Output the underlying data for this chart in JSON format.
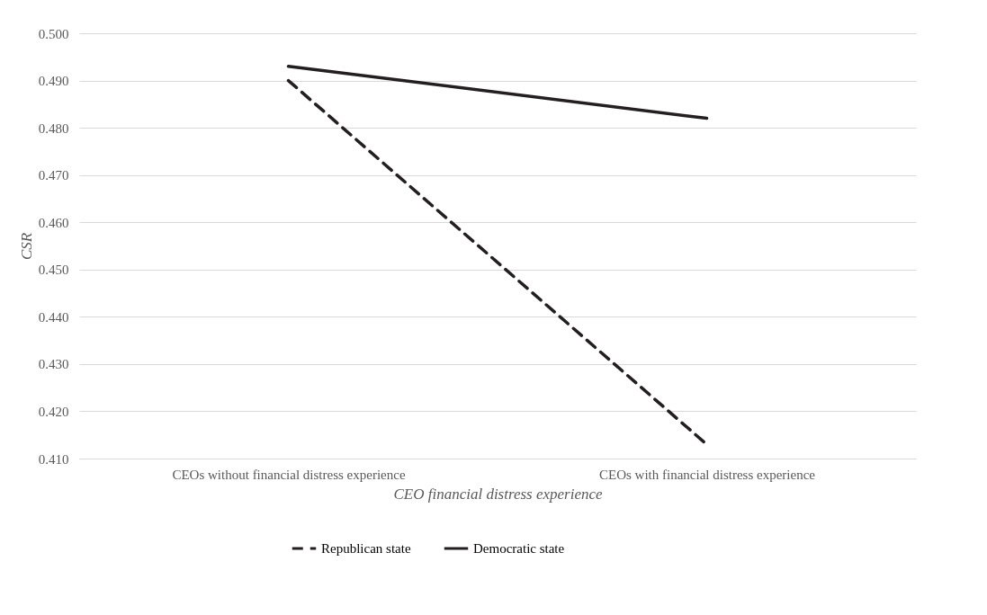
{
  "chart_data": {
    "type": "line",
    "xlabel": "CEO financial distress experience",
    "ylabel": "CSR",
    "categories": [
      "CEOs without financial distress experience",
      "CEOs with financial distress experience"
    ],
    "series": [
      {
        "name": "Republican state",
        "color": "#231f20",
        "values": [
          0.49,
          0.413
        ],
        "line_style": "dashed"
      },
      {
        "name": "Democratic state",
        "color": "#231f20",
        "values": [
          0.493,
          0.482
        ],
        "line_style": "solid"
      }
    ],
    "ylim": [
      0.41,
      0.5
    ],
    "yticks": [
      {
        "value": 0.41,
        "label": "0.410"
      },
      {
        "value": 0.42,
        "label": "0.420"
      },
      {
        "value": 0.43,
        "label": "0.430"
      },
      {
        "value": 0.44,
        "label": "0.440"
      },
      {
        "value": 0.45,
        "label": "0.450"
      },
      {
        "value": 0.46,
        "label": "0.460"
      },
      {
        "value": 0.47,
        "label": "0.470"
      },
      {
        "value": 0.48,
        "label": "0.480"
      },
      {
        "value": 0.49,
        "label": "0.490"
      },
      {
        "value": 0.5,
        "label": "0.500"
      }
    ],
    "grid": "y",
    "legend": "bottom",
    "marker": "none"
  }
}
